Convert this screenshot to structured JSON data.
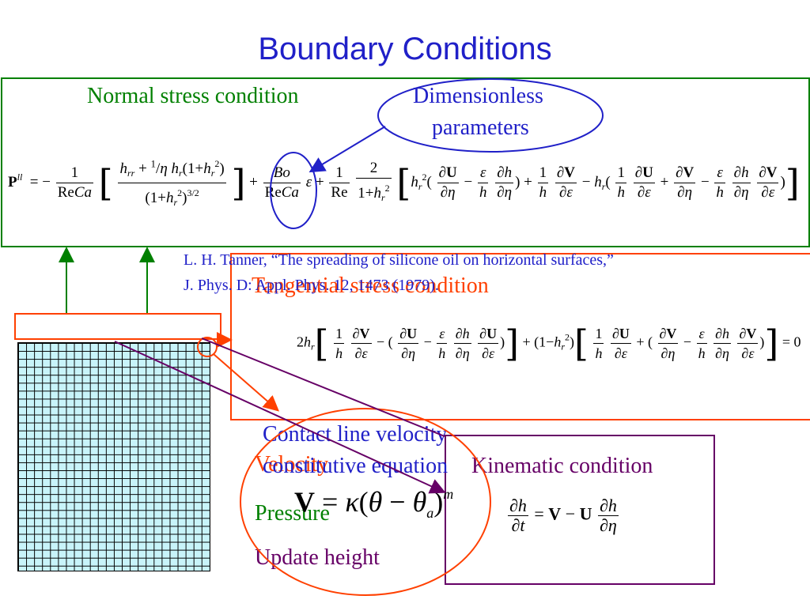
{
  "slide": {
    "title": "Boundary Conditions",
    "normal_stress_label": "Normal stress condition",
    "dimensionless_line1": "Dimensionless",
    "dimensionless_line2": "parameters",
    "reference_line1": "L. H. Tanner, “The spreading of silicone oil on horizontal surfaces,”",
    "reference_line2": "J. Phys. D: Appl. Phys. 12, 1473 (1979).",
    "tangential_label": "Tangential stress condition",
    "contact_line_label": "Contact line velocity",
    "constitutive_label": "constitutive equation",
    "velocity_label": "Velocity",
    "pressure_label": "Pressure",
    "update_height_label": "Update height",
    "kinematic_label": "Kinematic condition"
  },
  "colors": {
    "title": "#2020c8",
    "green": "#008000",
    "orange_red": "#ff4000",
    "purple": "#660066",
    "blue": "#2020c8",
    "grid_fill": "#c8f4fa"
  }
}
